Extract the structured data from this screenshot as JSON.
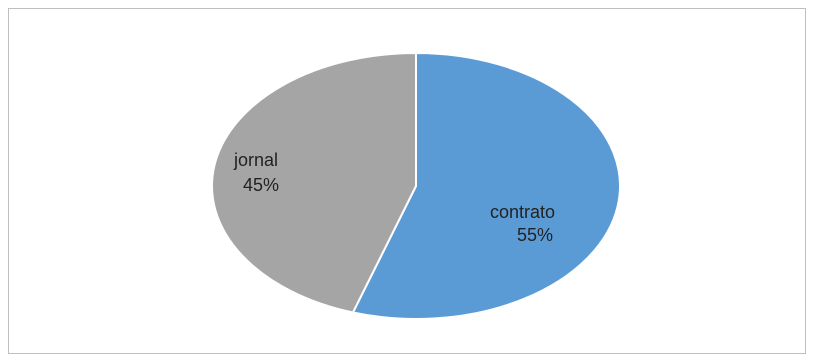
{
  "chart_data": {
    "type": "pie",
    "title": "",
    "slices": [
      {
        "label": "contrato",
        "percent_label": "55%",
        "value": 55,
        "color": "#5b9bd5"
      },
      {
        "label": "jornal",
        "percent_label": "45%",
        "value": 45,
        "color": "#a5a5a5"
      }
    ],
    "start_angle_deg": 0,
    "direction": "clockwise",
    "data_labels": "inside",
    "legend": "none"
  }
}
